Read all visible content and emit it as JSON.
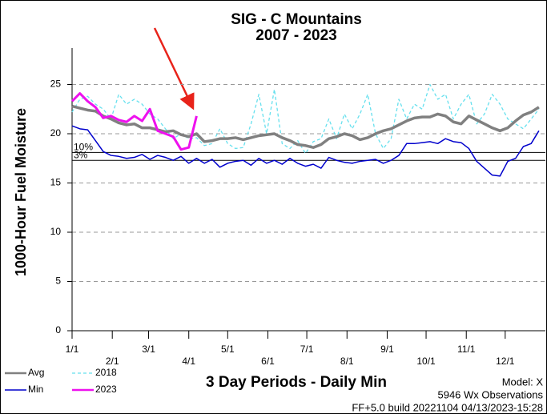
{
  "chart_data": {
    "type": "line",
    "title": "SIG - C Mountains",
    "subtitle": "2007 - 2023",
    "y_label": "1000-Hour Fuel Moisture",
    "x_label": "3 Day Periods - Daily Min",
    "notes": [
      "Model: X",
      "5946 Wx Observations",
      "FF+5.0 build 20221104 04/13/2023-15:28"
    ],
    "x": [
      0,
      6,
      12,
      18,
      24,
      30,
      36,
      42,
      48,
      54,
      60,
      66,
      72,
      78,
      84,
      90,
      96,
      102,
      108,
      114,
      120,
      126,
      132,
      138,
      144,
      150,
      156,
      162,
      168,
      174,
      180,
      186,
      192,
      198,
      204,
      210,
      216,
      222,
      228,
      234,
      240,
      246,
      252,
      258,
      264,
      270,
      276,
      282,
      288,
      294,
      300,
      306,
      312,
      318,
      324,
      330,
      336,
      342,
      348,
      354,
      360
    ],
    "xlim": [
      0,
      365
    ],
    "xticks": [
      {
        "value": 0,
        "label": "1/1"
      },
      {
        "value": 31,
        "label": "2/1"
      },
      {
        "value": 59,
        "label": "3/1"
      },
      {
        "value": 90,
        "label": "4/1"
      },
      {
        "value": 120,
        "label": "5/1"
      },
      {
        "value": 151,
        "label": "6/1"
      },
      {
        "value": 181,
        "label": "7/1"
      },
      {
        "value": 212,
        "label": "8/1"
      },
      {
        "value": 243,
        "label": "9/1"
      },
      {
        "value": 273,
        "label": "10/1"
      },
      {
        "value": 304,
        "label": "11/1"
      },
      {
        "value": 334,
        "label": "12/1"
      }
    ],
    "ylim": [
      0,
      28.7
    ],
    "yticks": [
      0,
      5,
      10,
      15,
      20,
      25
    ],
    "grid": true,
    "reference_lines": [
      {
        "label": "10%",
        "value": 18.1
      },
      {
        "label": "3%",
        "value": 17.3
      }
    ],
    "series": [
      {
        "name": "Avg",
        "color": "#808080",
        "width": 3.5,
        "dashed": false,
        "values": [
          22.8,
          22.6,
          22.4,
          22.3,
          21.8,
          21.5,
          21.1,
          20.9,
          21.0,
          20.6,
          20.6,
          20.4,
          20.2,
          20.3,
          19.9,
          19.7,
          20.0,
          19.2,
          19.3,
          19.5,
          19.5,
          19.6,
          19.4,
          19.6,
          19.8,
          19.9,
          20.0,
          19.6,
          19.3,
          18.9,
          18.8,
          18.6,
          18.9,
          19.5,
          19.7,
          20.0,
          19.8,
          19.4,
          19.6,
          20.0,
          20.3,
          20.5,
          20.9,
          21.3,
          21.6,
          21.7,
          21.7,
          22.0,
          21.8,
          21.2,
          21.0,
          21.8,
          21.4,
          21.0,
          20.6,
          20.3,
          20.6,
          21.3,
          21.9,
          22.2,
          22.7
        ]
      },
      {
        "name": "Min",
        "color": "#0000cc",
        "width": 1.5,
        "dashed": false,
        "values": [
          20.8,
          20.5,
          20.4,
          19.3,
          18.2,
          17.8,
          17.7,
          17.5,
          17.6,
          17.9,
          17.4,
          17.8,
          17.6,
          17.3,
          17.7,
          17.0,
          17.5,
          17.0,
          17.4,
          16.6,
          17.0,
          17.2,
          17.3,
          16.8,
          17.5,
          17.0,
          17.3,
          16.9,
          17.5,
          17.0,
          16.7,
          16.9,
          16.5,
          17.6,
          17.3,
          17.1,
          17.0,
          17.2,
          17.3,
          17.4,
          17.0,
          17.3,
          17.8,
          19.0,
          19.0,
          19.1,
          19.2,
          19.0,
          19.5,
          19.2,
          19.1,
          18.5,
          17.2,
          16.5,
          15.8,
          15.7,
          17.2,
          17.5,
          18.7,
          19.0,
          20.3
        ]
      },
      {
        "name": "2018",
        "color": "#66e0ee",
        "width": 1.3,
        "dashed": true,
        "values": [
          22.2,
          23.5,
          23.8,
          23.0,
          22.5,
          21.5,
          24.0,
          23.0,
          23.5,
          23.0,
          22.0,
          21.5,
          20.5,
          19.5,
          20.0,
          19.5,
          19.6,
          18.8,
          19.0,
          20.5,
          19.0,
          18.5,
          18.6,
          21.0,
          24.0,
          20.0,
          24.5,
          19.0,
          18.5,
          19.3,
          18.0,
          19.2,
          19.5,
          21.5,
          19.5,
          22.0,
          20.5,
          22.0,
          24.0,
          20.0,
          18.5,
          19.5,
          23.5,
          21.5,
          23.0,
          22.5,
          25.0,
          23.5,
          24.0,
          21.5,
          23.0,
          24.0,
          21.0,
          22.0,
          24.0,
          23.0,
          21.5,
          21.0,
          20.5,
          21.5,
          22.5
        ]
      },
      {
        "name": "2023",
        "color": "#ee11ee",
        "width": 3,
        "dashed": false,
        "values": [
          23.3,
          24.1,
          23.3,
          22.7,
          21.6,
          21.8,
          21.4,
          21.2,
          21.8,
          21.3,
          22.5,
          20.3,
          20.0,
          19.7,
          18.4,
          18.6,
          21.8,
          null,
          null,
          null,
          null,
          null,
          null,
          null,
          null,
          null,
          null,
          null,
          null,
          null,
          null,
          null,
          null,
          null,
          null,
          null,
          null,
          null,
          null,
          null,
          null,
          null,
          null,
          null,
          null,
          null,
          null,
          null,
          null,
          null,
          null,
          null,
          null,
          null,
          null,
          null,
          null,
          null,
          null,
          null,
          null
        ]
      }
    ]
  }
}
